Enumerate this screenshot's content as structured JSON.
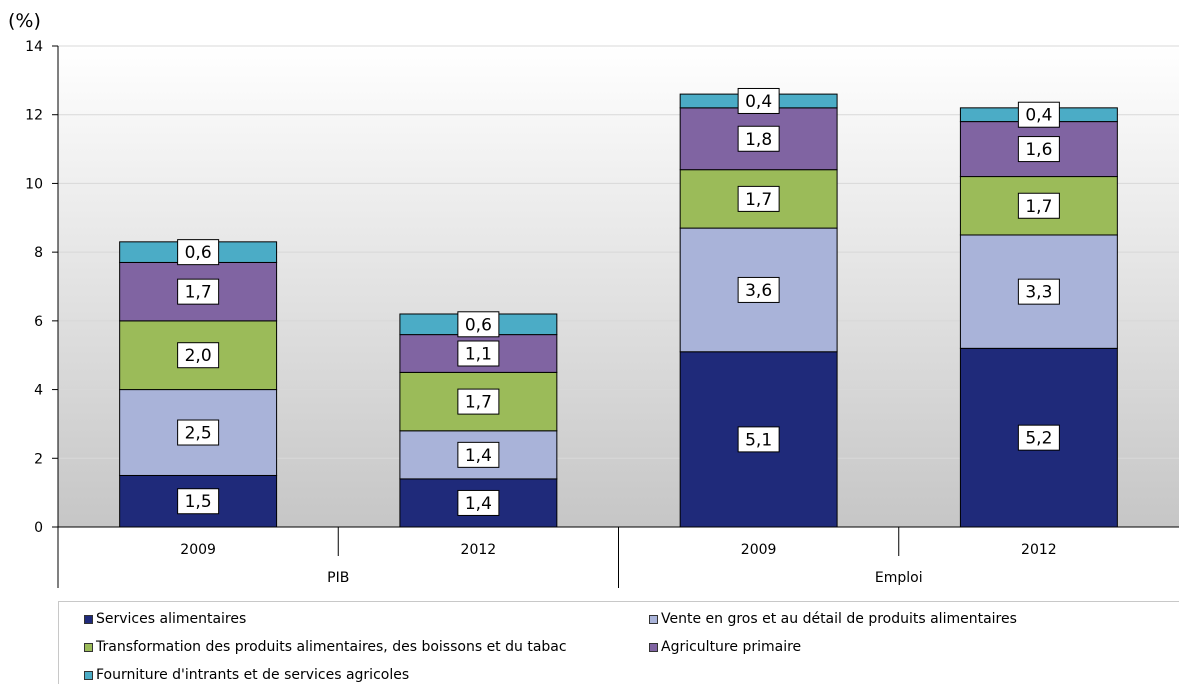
{
  "colors": {
    "services": "#1f2a7a",
    "vente": "#a9b3d9",
    "transformation": "#9bbb59",
    "agriculture": "#8064a2",
    "fourniture": "#4bacc6"
  },
  "chart_data": {
    "type": "bar",
    "stacked": true,
    "ylabel": "(%)",
    "ylim": [
      0,
      14
    ],
    "yticks": [
      "0",
      "2",
      "4",
      "6",
      "8",
      "10",
      "12",
      "14"
    ],
    "groups": [
      "PIB",
      "Emploi"
    ],
    "categories": [
      "2009",
      "2012",
      "2009",
      "2012"
    ],
    "series": [
      {
        "name": "Services alimentaires",
        "key": "services",
        "values": [
          1.5,
          1.4,
          5.1,
          5.2
        ],
        "labels": [
          "1,5",
          "1,4",
          "5,1",
          "5,2"
        ]
      },
      {
        "name": "Vente en gros et au détail de produits alimentaires",
        "key": "vente",
        "values": [
          2.5,
          1.4,
          3.6,
          3.3
        ],
        "labels": [
          "2,5",
          "1,4",
          "3,6",
          "3,3"
        ]
      },
      {
        "name": "Transformation des produits alimentaires, des boissons et du tabac",
        "key": "transformation",
        "values": [
          2.0,
          1.7,
          1.7,
          1.7
        ],
        "labels": [
          "2,0",
          "1,7",
          "1,7",
          "1,7"
        ]
      },
      {
        "name": "Agriculture primaire",
        "key": "agriculture",
        "values": [
          1.7,
          1.1,
          1.8,
          1.6
        ],
        "labels": [
          "1,7",
          "1,1",
          "1,8",
          "1,6"
        ]
      },
      {
        "name": "Fourniture d'intrants et de services agricoles",
        "key": "fourniture",
        "values": [
          0.6,
          0.6,
          0.4,
          0.4
        ],
        "labels": [
          "0,6",
          "0,6",
          "0,4",
          "0,4"
        ]
      }
    ],
    "legend_position": "bottom",
    "grid": true
  }
}
